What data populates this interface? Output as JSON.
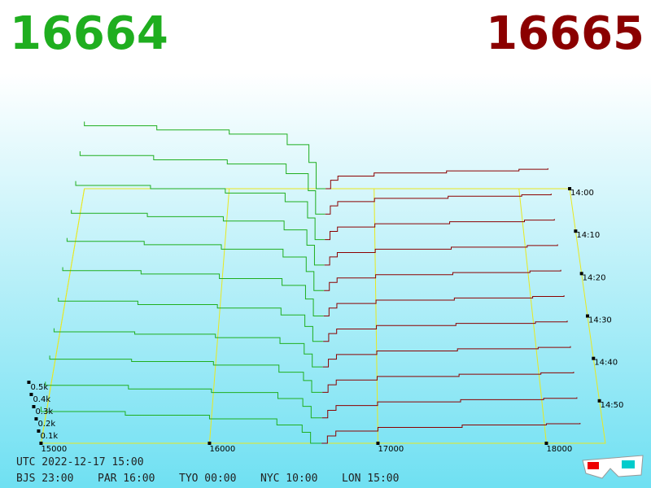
{
  "chart_data": {
    "type": "depth3d",
    "bid_label": "16664",
    "ask_label": "16665",
    "bid_color": "#1fae1f",
    "ask_color": "#8b0000",
    "xlim": [
      15000,
      18350
    ],
    "xticks": [
      15000,
      16000,
      17000,
      18000
    ],
    "vlim": [
      0,
      500
    ],
    "vticks": [
      {
        "value": 100,
        "label": "0.1k"
      },
      {
        "value": 200,
        "label": "0.2k"
      },
      {
        "value": 300,
        "label": "0.3k"
      },
      {
        "value": 400,
        "label": "0.4k"
      },
      {
        "value": 500,
        "label": "0.5k"
      }
    ],
    "tlim": [
      0,
      60
    ],
    "tticks": [
      {
        "value": 0,
        "label": "14:00"
      },
      {
        "value": 10,
        "label": "14:10"
      },
      {
        "value": 20,
        "label": "14:20"
      },
      {
        "value": 30,
        "label": "14:30"
      },
      {
        "value": 40,
        "label": "14:40"
      },
      {
        "value": 50,
        "label": "14:50"
      }
    ],
    "snapshot_minutes": [
      0,
      6,
      12,
      18,
      24,
      30,
      36,
      42,
      48,
      54,
      60
    ],
    "bid_prices": [
      16664,
      16600,
      16550,
      16400,
      16000,
      15500,
      15000
    ],
    "ask_prices": [
      16665,
      16700,
      16750,
      17000,
      17500,
      18000,
      18200
    ],
    "bids": [
      [
        0,
        250,
        420,
        520,
        560,
        600,
        640
      ],
      [
        0,
        220,
        380,
        470,
        510,
        550,
        590
      ],
      [
        0,
        200,
        350,
        430,
        470,
        500,
        540
      ],
      [
        0,
        180,
        320,
        400,
        440,
        470,
        500
      ],
      [
        0,
        170,
        300,
        370,
        410,
        440,
        470
      ],
      [
        0,
        150,
        270,
        330,
        370,
        400,
        430
      ],
      [
        0,
        130,
        230,
        290,
        320,
        350,
        380
      ],
      [
        0,
        110,
        200,
        250,
        280,
        300,
        330
      ],
      [
        0,
        100,
        170,
        230,
        260,
        280,
        310
      ],
      [
        0,
        95,
        160,
        210,
        240,
        270,
        300
      ],
      [
        0,
        90,
        150,
        200,
        230,
        260,
        300
      ]
    ],
    "asks": [
      [
        0,
        80,
        120,
        150,
        170,
        185,
        195
      ],
      [
        0,
        78,
        118,
        148,
        168,
        182,
        192
      ],
      [
        0,
        76,
        116,
        146,
        165,
        180,
        190
      ],
      [
        0,
        74,
        114,
        144,
        163,
        178,
        188
      ],
      [
        0,
        72,
        112,
        142,
        161,
        175,
        185
      ],
      [
        0,
        70,
        110,
        140,
        159,
        172,
        182
      ],
      [
        0,
        68,
        108,
        138,
        157,
        170,
        180
      ],
      [
        0,
        66,
        106,
        136,
        155,
        167,
        177
      ],
      [
        0,
        64,
        104,
        134,
        153,
        165,
        173
      ],
      [
        0,
        62,
        102,
        132,
        151,
        162,
        170
      ],
      [
        0,
        60,
        100,
        130,
        150,
        160,
        167
      ]
    ],
    "utc": "UTC 2022-12-17 15:00",
    "clocks": [
      "BJS 23:00",
      "PAR 16:00",
      "TYO 00:00",
      "NYC 10:00",
      "LON 15:00"
    ]
  }
}
